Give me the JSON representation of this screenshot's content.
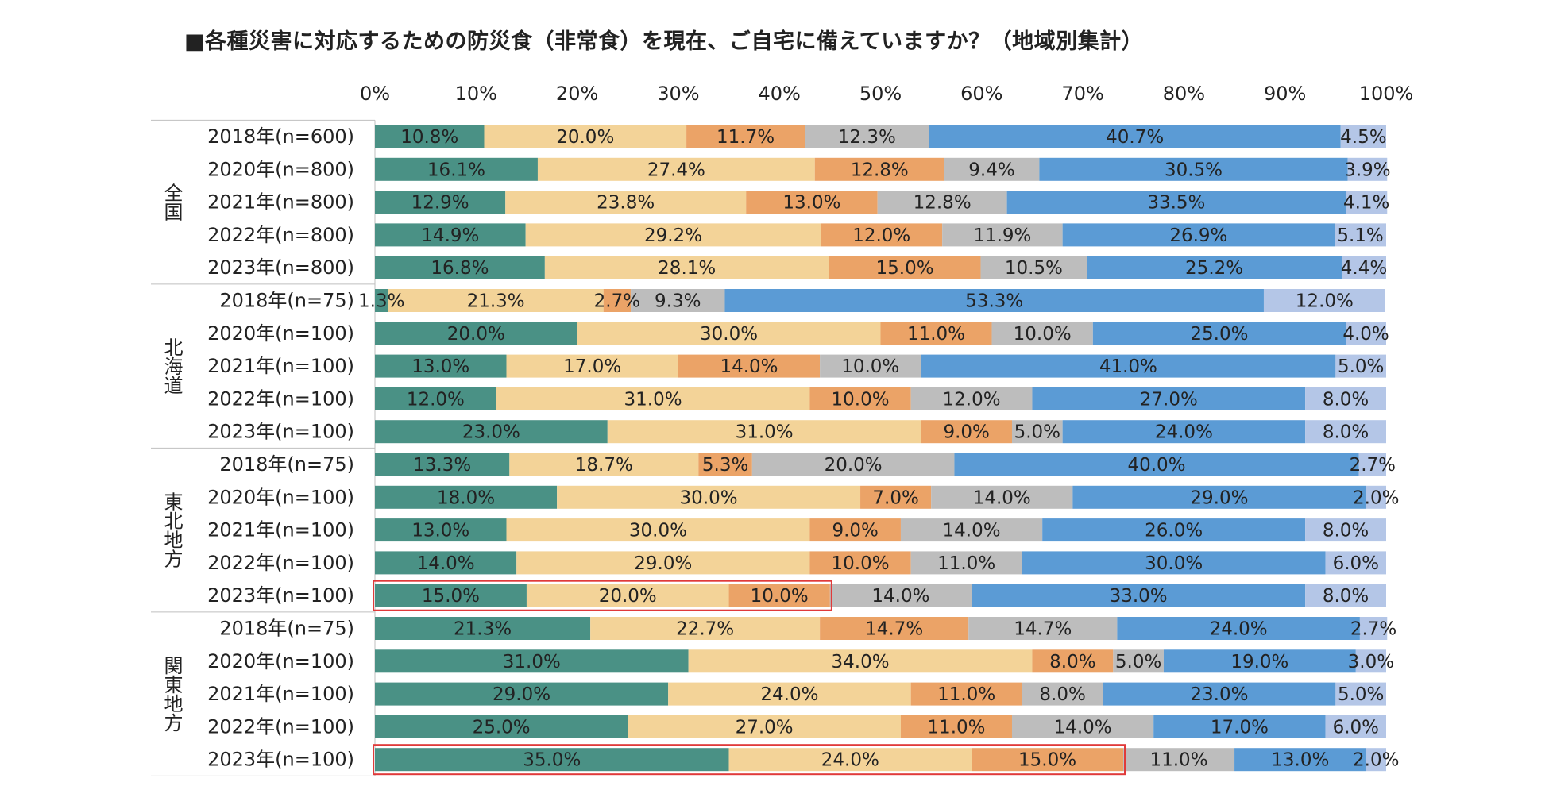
{
  "title": "■各種災害に対応するための防災食（非常食）を現在、ご自宅に備えていますか？（地域別集計）",
  "chart_data": {
    "type": "bar",
    "orientation": "horizontal",
    "stacked": true,
    "title": "■各種災害に対応するための防災食（非常食）を現在、ご自宅に備えていますか？（地域別集計）",
    "xlim": [
      0,
      100
    ],
    "x_ticks": [
      "0%",
      "10%",
      "20%",
      "30%",
      "40%",
      "50%",
      "60%",
      "70%",
      "80%",
      "90%",
      "100%"
    ],
    "series_colors": [
      "#4a9185",
      "#f3d398",
      "#eba367",
      "#bdbdbd",
      "#5b9bd5",
      "#b4c6e7"
    ],
    "groups": [
      {
        "name": "全国",
        "rows": [
          {
            "label": "2018年(n=600)",
            "values": [
              10.8,
              20.0,
              11.7,
              12.3,
              40.7,
              4.5
            ]
          },
          {
            "label": "2020年(n=800)",
            "values": [
              16.1,
              27.4,
              12.8,
              9.4,
              30.5,
              3.9
            ]
          },
          {
            "label": "2021年(n=800)",
            "values": [
              12.9,
              23.8,
              13.0,
              12.8,
              33.5,
              4.1
            ]
          },
          {
            "label": "2022年(n=800)",
            "values": [
              14.9,
              29.2,
              12.0,
              11.9,
              26.9,
              5.1
            ]
          },
          {
            "label": "2023年(n=800)",
            "values": [
              16.8,
              28.1,
              15.0,
              10.5,
              25.2,
              4.4
            ]
          }
        ]
      },
      {
        "name": "北海道",
        "rows": [
          {
            "label": "2018年(n=75)",
            "values": [
              1.3,
              21.3,
              2.7,
              9.3,
              53.3,
              12.0
            ]
          },
          {
            "label": "2020年(n=100)",
            "values": [
              20.0,
              30.0,
              11.0,
              10.0,
              25.0,
              4.0
            ]
          },
          {
            "label": "2021年(n=100)",
            "values": [
              13.0,
              17.0,
              14.0,
              10.0,
              41.0,
              5.0
            ]
          },
          {
            "label": "2022年(n=100)",
            "values": [
              12.0,
              31.0,
              10.0,
              12.0,
              27.0,
              8.0
            ]
          },
          {
            "label": "2023年(n=100)",
            "values": [
              23.0,
              31.0,
              9.0,
              5.0,
              24.0,
              8.0
            ]
          }
        ]
      },
      {
        "name": "東北地方",
        "rows": [
          {
            "label": "2018年(n=75)",
            "values": [
              13.3,
              18.7,
              5.3,
              20.0,
              40.0,
              2.7
            ]
          },
          {
            "label": "2020年(n=100)",
            "values": [
              18.0,
              30.0,
              7.0,
              14.0,
              29.0,
              2.0
            ]
          },
          {
            "label": "2021年(n=100)",
            "values": [
              13.0,
              30.0,
              9.0,
              14.0,
              26.0,
              8.0
            ]
          },
          {
            "label": "2022年(n=100)",
            "values": [
              14.0,
              29.0,
              10.0,
              11.0,
              30.0,
              6.0
            ]
          },
          {
            "label": "2023年(n=100)",
            "values": [
              15.0,
              20.0,
              10.0,
              14.0,
              33.0,
              8.0
            ],
            "highlight_segments": 3
          }
        ]
      },
      {
        "name": "関東地方",
        "rows": [
          {
            "label": "2018年(n=75)",
            "values": [
              21.3,
              22.7,
              14.7,
              14.7,
              24.0,
              2.7
            ]
          },
          {
            "label": "2020年(n=100)",
            "values": [
              31.0,
              34.0,
              8.0,
              5.0,
              19.0,
              3.0
            ]
          },
          {
            "label": "2021年(n=100)",
            "values": [
              29.0,
              24.0,
              11.0,
              8.0,
              23.0,
              5.0
            ]
          },
          {
            "label": "2022年(n=100)",
            "values": [
              25.0,
              27.0,
              11.0,
              14.0,
              17.0,
              6.0
            ]
          },
          {
            "label": "2023年(n=100)",
            "values": [
              35.0,
              24.0,
              15.0,
              11.0,
              13.0,
              2.0
            ],
            "highlight_segments": 3
          }
        ]
      }
    ],
    "highlight_color": "#e03a3a"
  }
}
